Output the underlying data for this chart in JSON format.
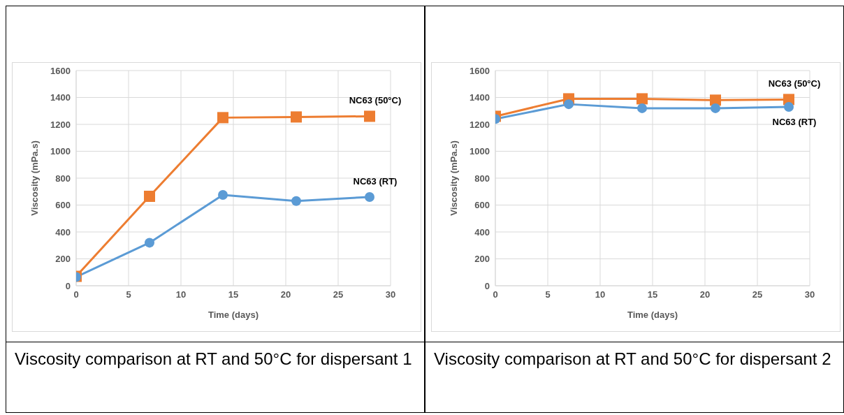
{
  "chart_data": [
    {
      "type": "line",
      "xlabel": "Time (days)",
      "ylabel": "Viscosity (mPa.s)",
      "x": [
        0,
        7,
        14,
        21,
        28
      ],
      "series": [
        {
          "name": "NC63 (50°C)",
          "color": "#ed7d31",
          "marker": "square",
          "values": [
            70,
            665,
            1250,
            1255,
            1260
          ]
        },
        {
          "name": "NC63 (RT)",
          "color": "#5b9bd5",
          "marker": "circle",
          "values": [
            65,
            320,
            675,
            630,
            660
          ]
        }
      ],
      "xlim": [
        0,
        30
      ],
      "xticks": [
        0,
        5,
        10,
        15,
        20,
        25,
        30
      ],
      "ylim": [
        0,
        1600
      ],
      "yticks": [
        0,
        200,
        400,
        600,
        800,
        1000,
        1200,
        1400,
        1600
      ],
      "grid": true,
      "legend": false,
      "annotations": [
        "Viscosity comparison at RT and 50°C for dispersant 1"
      ]
    },
    {
      "type": "line",
      "xlabel": "Time (days)",
      "ylabel": "Viscosity (mPa.s)",
      "x": [
        0,
        7,
        14,
        21,
        28
      ],
      "series": [
        {
          "name": "NC63 (50°C)",
          "color": "#ed7d31",
          "marker": "square",
          "values": [
            1260,
            1390,
            1390,
            1380,
            1385
          ]
        },
        {
          "name": "NC63 (RT)",
          "color": "#5b9bd5",
          "marker": "circle",
          "values": [
            1240,
            1350,
            1320,
            1320,
            1330
          ]
        }
      ],
      "xlim": [
        0,
        30
      ],
      "xticks": [
        0,
        5,
        10,
        15,
        20,
        25,
        30
      ],
      "ylim": [
        0,
        1600
      ],
      "yticks": [
        0,
        200,
        400,
        600,
        800,
        1000,
        1200,
        1400,
        1600
      ],
      "grid": true,
      "legend": false,
      "annotations": [
        "Viscosity comparison at RT and 50°C for dispersant 2"
      ]
    }
  ]
}
